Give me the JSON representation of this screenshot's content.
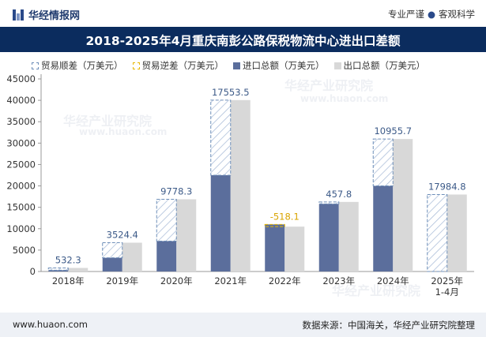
{
  "header": {
    "brand": "华经情报网",
    "tagline_left": "专业严谨",
    "tagline_right": "客观科学",
    "title": "2018-2025年4月重庆南彭公路保税物流中心进出口差额"
  },
  "legend": {
    "surplus": "贸易顺差（万美元）",
    "deficit": "贸易逆差（万美元）",
    "import": "进口总额（万美元）",
    "export": "出口总额（万美元）"
  },
  "watermark": {
    "text": "华经产业研究院",
    "url": "www.huaon.com"
  },
  "footer": {
    "url": "www.huaon.com",
    "source": "数据来源：中国海关，华经产业研究院整理"
  },
  "colors": {
    "import": "#5b6e9c",
    "export": "#d8d8d8",
    "surplus_stroke": "#6f8fb9",
    "deficit_stroke": "#e8b800",
    "title_bg": "#0b2c5e"
  },
  "chart_data": {
    "type": "bar",
    "categories": [
      "2018年",
      "2019年",
      "2020年",
      "2021年",
      "2022年",
      "2023年",
      "2024年",
      "2025年\n1-4月"
    ],
    "ylim": [
      0,
      45000
    ],
    "yticks": [
      0,
      5000,
      10000,
      15000,
      20000,
      25000,
      30000,
      35000,
      40000,
      45000
    ],
    "series": [
      {
        "name": "进口总额（万美元）",
        "values": [
          300,
          3200,
          7100,
          22500,
          11000,
          15800,
          20000,
          0
        ]
      },
      {
        "name": "出口总额（万美元）",
        "values": [
          832.3,
          6724.4,
          16878.3,
          40053.5,
          10481.9,
          16257.8,
          30955.7,
          17984.8
        ]
      },
      {
        "name": "贸易差额（万美元）",
        "values": [
          532.3,
          3524.4,
          9778.3,
          17553.5,
          -518.1,
          457.8,
          10955.7,
          17984.8
        ]
      }
    ],
    "balance_labels": [
      "532.3",
      "3524.4",
      "9778.3",
      "17553.5",
      "-518.1",
      "457.8",
      "10955.7",
      "17984.8"
    ],
    "legend_position": "top-left",
    "grid": false
  }
}
